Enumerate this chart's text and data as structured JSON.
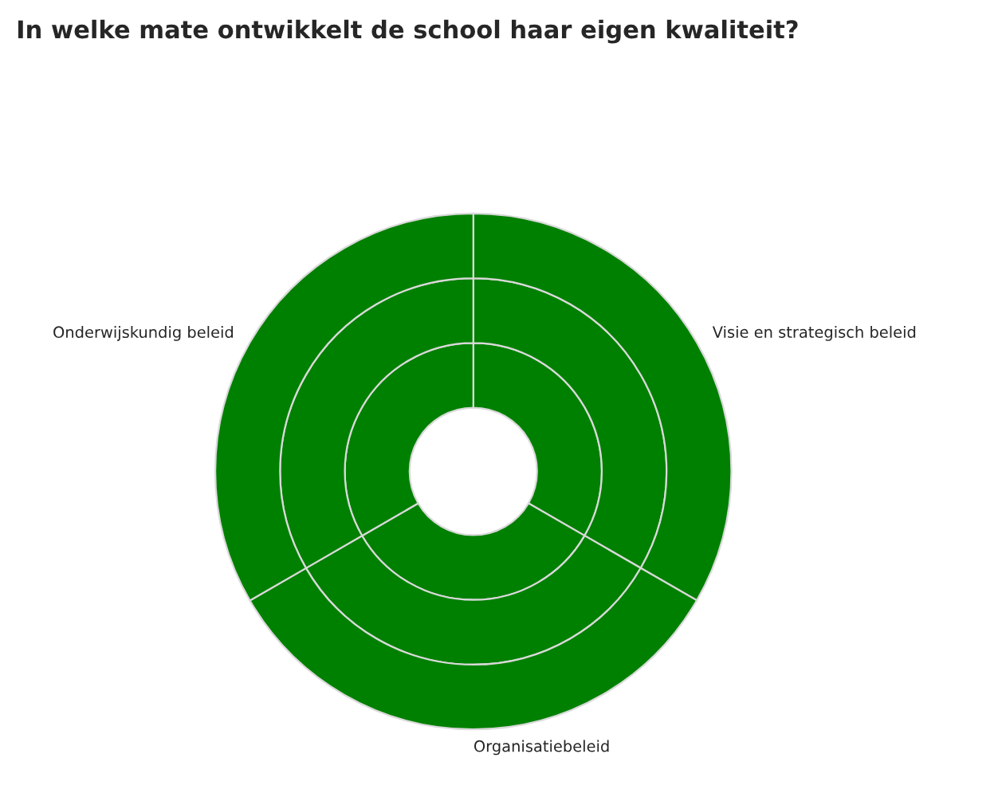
{
  "chart_data": {
    "type": "donut",
    "title": "In welke mate ontwikkelt de school haar eigen kwaliteit?",
    "categories": [
      "Visie en strategisch beleid",
      "Organisatiebeleid",
      "Onderwijskundig beleid"
    ],
    "series": [
      {
        "color": "#008000",
        "values": [
          33.33,
          33.33,
          33.34
        ]
      },
      {
        "color": "#008000",
        "values": [
          33.33,
          33.33,
          33.34
        ]
      },
      {
        "color": "#008000",
        "values": [
          33.33,
          33.33,
          33.34
        ]
      }
    ]
  }
}
